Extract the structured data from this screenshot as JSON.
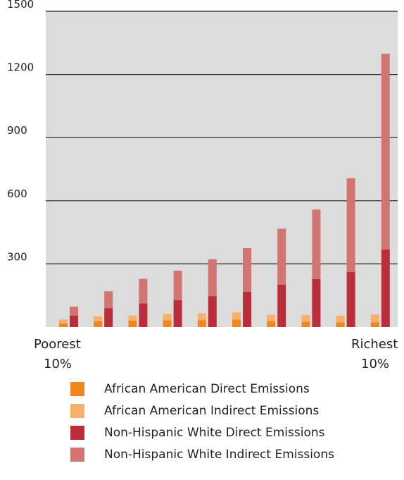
{
  "chart_data": {
    "type": "bar",
    "stacked": true,
    "grouped": true,
    "y_ticks": [
      1500,
      1200,
      900,
      600,
      300
    ],
    "ylim": [
      0,
      1500
    ],
    "grid": true,
    "x_end_labels": {
      "left": [
        "Poorest",
        "10%"
      ],
      "right": [
        "Richest",
        "10%"
      ]
    },
    "groups": [
      "1",
      "2",
      "3",
      "4",
      "5",
      "6",
      "7",
      "8",
      "9",
      "10"
    ],
    "series": [
      {
        "name": "African American Direct Emissions",
        "group": "African American",
        "color": "#f0871e",
        "values": [
          18,
          28,
          30,
          32,
          33,
          35,
          28,
          25,
          22,
          22
        ]
      },
      {
        "name": "African American Indirect Emissions",
        "group": "African American",
        "color": "#f6b06a",
        "values": [
          18,
          22,
          25,
          30,
          32,
          35,
          30,
          32,
          32,
          38
        ]
      },
      {
        "name": "Non-Hispanic White Direct Emissions",
        "group": "Non-Hispanic White",
        "color": "#bb2d3b",
        "values": [
          55,
          90,
          112,
          128,
          147,
          168,
          202,
          228,
          262,
          368
        ]
      },
      {
        "name": "Non-Hispanic White Indirect Emissions",
        "group": "Non-Hispanic White",
        "color": "#d27570",
        "values": [
          42,
          80,
          117,
          140,
          175,
          207,
          265,
          330,
          445,
          930
        ]
      }
    ]
  }
}
